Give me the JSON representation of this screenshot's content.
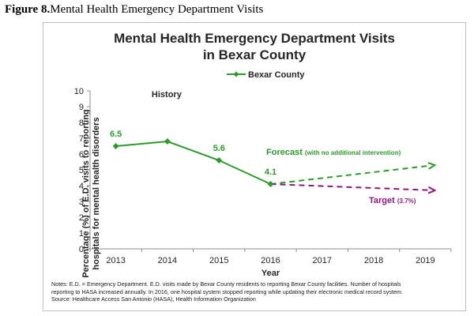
{
  "caption": {
    "figure_label": "Figure 8.",
    "text": "Mental Health Emergency Department Visits"
  },
  "chart_data": {
    "type": "line",
    "title_line1": "Mental Health Emergency Department Visits",
    "title_line2": "in Bexar County",
    "ylabel_line1": "Percentage (%) of E.D. visits to reporting",
    "ylabel_line2": "hospitals for mental health disorders",
    "xlabel": "Year",
    "categories": [
      "2013",
      "2014",
      "2015",
      "2016",
      "2017",
      "2018",
      "2019"
    ],
    "ylim": [
      0,
      10
    ],
    "yticks": [
      "0",
      "1",
      "2",
      "3",
      "4",
      "5",
      "6",
      "7",
      "8",
      "9",
      "10"
    ],
    "legend_placement": "top-center",
    "series": [
      {
        "name": "Bexar County",
        "x": [
          "2013",
          "2014",
          "2015",
          "2016"
        ],
        "values": [
          6.5,
          6.8,
          5.6,
          4.1
        ],
        "color": "#2e9a2e"
      }
    ],
    "data_labels": [
      {
        "x": "2013",
        "value": 6.5,
        "text": "6.5"
      },
      {
        "x": "2015",
        "value": 5.6,
        "text": "5.6"
      },
      {
        "x": "2016",
        "value": 4.1,
        "text": "4.1"
      }
    ],
    "projections": [
      {
        "label": "Forecast",
        "note": "(with no additional intervention)",
        "from": [
          "2016",
          4.1
        ],
        "to": [
          "2019",
          5.3
        ],
        "color": "#2e9a2e"
      },
      {
        "label": "Target",
        "note": "(3.7%)",
        "from": [
          "2016",
          4.1
        ],
        "to": [
          "2019",
          3.7
        ],
        "color": "#8b1a7e"
      }
    ],
    "annotations": [
      {
        "text": "History"
      }
    ],
    "grid": false
  },
  "notes": {
    "line1": "Notes: E.D. = Emergency Department.  E.D. visits made by Bexar County residents to reporting Bexar County facilities.  Number of hospitals",
    "line2": "reporting to HASA  increased annually.  In 2016, one hospital system stopped reporting while updating their electronic medical record system.",
    "line3": "Source: Healthcare Access San Antonio (HASA), Health Information Organization"
  }
}
